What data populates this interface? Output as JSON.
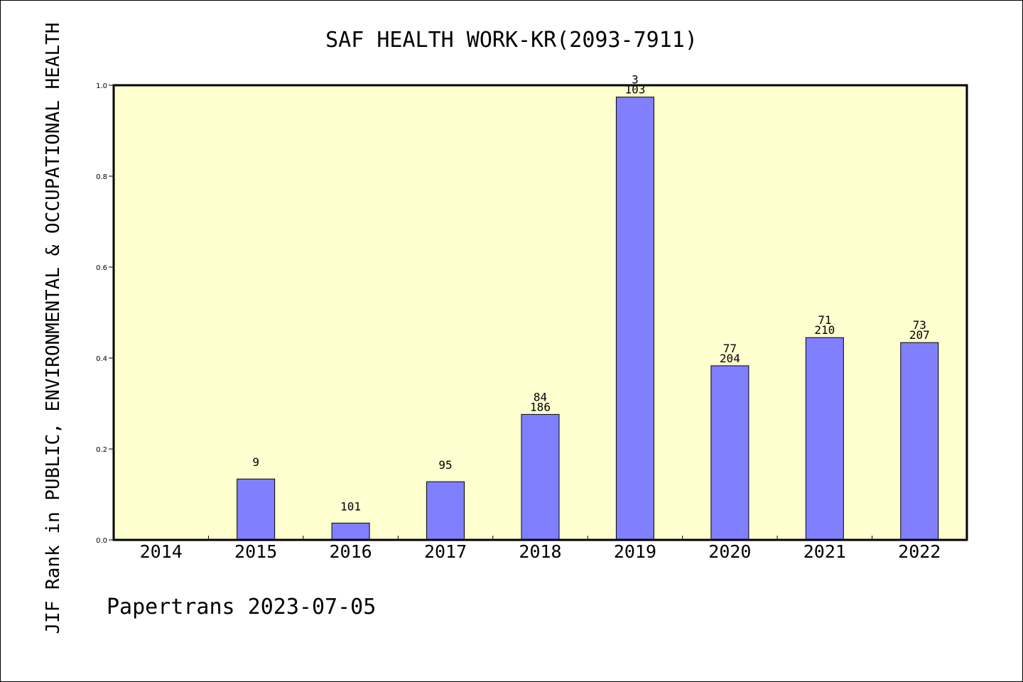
{
  "chart_data": {
    "type": "bar",
    "title": "SAF HEALTH WORK-KR(2093-7911)",
    "ylabel": "JIF Rank in PUBLIC, ENVIRONMENTAL & OCCUPATIONAL HEALTH",
    "xlabel": "",
    "categories": [
      "2014",
      "2015",
      "2016",
      "2017",
      "2018",
      "2019",
      "2020",
      "2021",
      "2022"
    ],
    "values": [
      null,
      0.134,
      0.037,
      0.128,
      0.276,
      0.974,
      0.383,
      0.445,
      0.434
    ],
    "rank_labels": [
      "",
      "9",
      "101",
      "95",
      "84",
      "3",
      "77",
      "71",
      "73"
    ],
    "total_labels": [
      "",
      "",
      "",
      "",
      "186",
      "103",
      "204",
      "210",
      "207"
    ],
    "ylim": [
      0,
      1.0
    ],
    "yticks": [
      "0.0",
      "0.2",
      "0.4",
      "0.6",
      "0.8",
      "1.0"
    ],
    "grid": false,
    "legend": "none",
    "colors": {
      "bar": "#8080ff",
      "plot_bg": "#ffffd0",
      "axis": "#000000"
    }
  },
  "footer": "Papertrans 2023-07-05"
}
